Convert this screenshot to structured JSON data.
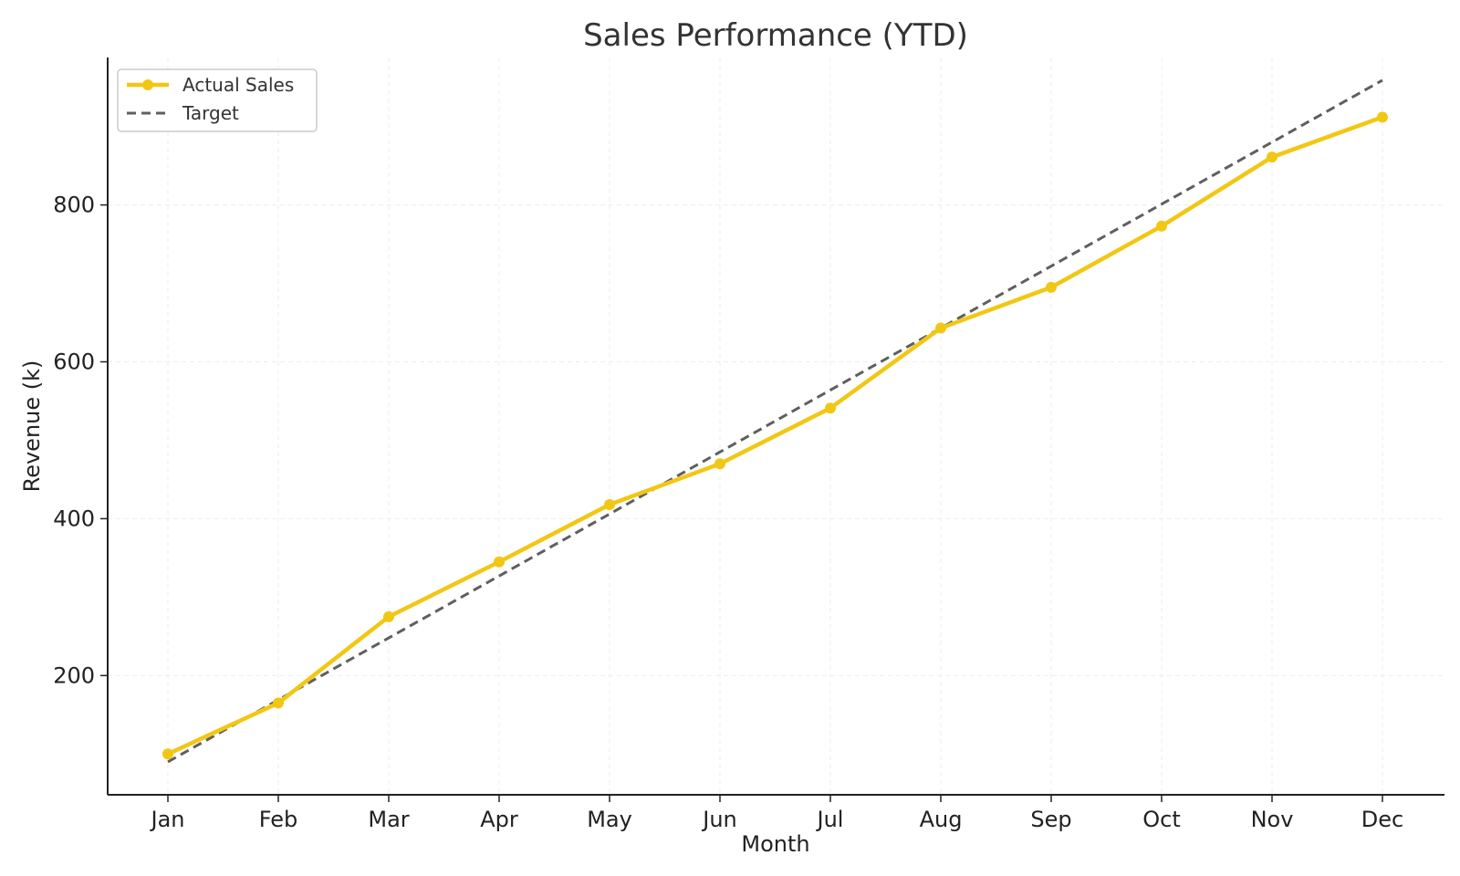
{
  "chart_data": {
    "type": "line",
    "title": "Sales Performance (YTD)",
    "xlabel": "Month",
    "ylabel": "Revenue (k)",
    "categories": [
      "Jan",
      "Feb",
      "Mar",
      "Apr",
      "May",
      "Jun",
      "Jul",
      "Aug",
      "Sep",
      "Oct",
      "Nov",
      "Dec"
    ],
    "yticks": [
      200,
      400,
      600,
      800
    ],
    "ylim": [
      48,
      988
    ],
    "grid": true,
    "legend_position": "top-left",
    "series": [
      {
        "name": "Actual Sales",
        "values": [
          100,
          165,
          275,
          345,
          418,
          470,
          541,
          643,
          695,
          773,
          861,
          912
        ],
        "color": "#f2c714",
        "style": "solid",
        "marker": "circle"
      },
      {
        "name": "Target",
        "values": [
          90,
          169,
          248,
          327,
          406,
          485,
          564,
          643,
          722,
          801,
          880,
          959
        ],
        "color": "#5f5f5f",
        "style": "dashed",
        "marker": "none"
      }
    ]
  }
}
